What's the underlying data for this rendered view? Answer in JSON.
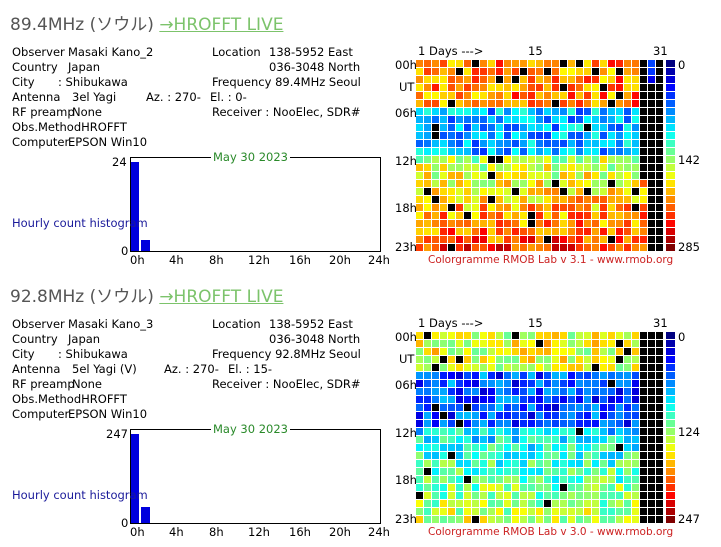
{
  "panels": [
    {
      "title_freq": "89.4MHz (ソウル)",
      "title_link": "→HROFFT LIVE",
      "info": {
        "observer_label": "Observer",
        "observer": "Masaki Kano_2",
        "country_label": "Country",
        "country": "Japan",
        "city_label": "City",
        "city": ":  Shibukawa",
        "antenna_label": "Antenna",
        "antenna": "3el Yagi",
        "az": "Az. : 270-",
        "el": "El. : 0-",
        "rf_label": "RF preamp",
        "rf": "None",
        "obs_method": "Obs.MethodHROFFT",
        "computer_label": "Computer",
        "computer": "EPSON Win10",
        "location_label": "Location",
        "location_e": "138-5952 East",
        "location_n": "036-3048 North",
        "frequency": "Frequency 89.4MHz Seoul",
        "receiver": "Receiver : NooElec, SDR#"
      },
      "histogram": {
        "date": "May 30 2023",
        "y_max_label": "24",
        "y_min_label": "0",
        "label": "Hourly count histogram",
        "x_labels": [
          "0h",
          "4h",
          "8h",
          "12h",
          "16h",
          "20h",
          "24h"
        ],
        "ymax": 24,
        "counts": [
          24,
          3,
          0,
          0,
          0,
          0,
          0,
          0,
          0,
          0,
          0,
          0,
          0,
          0,
          0,
          0,
          0,
          0,
          0,
          0,
          0,
          0,
          0,
          0
        ]
      },
      "colorgramme": {
        "days_label": "1   Days --->",
        "day_mid": "15",
        "day_end": "31",
        "hours": [
          "00h",
          "UT",
          "06h",
          "12h",
          "18h",
          "23h"
        ],
        "scale": [
          "0",
          "142",
          "285"
        ],
        "credit": "Colorgramme RMOB Lab v 3.1 - www.rmob.org",
        "seed": 7
      }
    },
    {
      "title_freq": "92.8MHz (ソウル)",
      "title_link": "→HROFFT LIVE",
      "info": {
        "observer_label": "Observer",
        "observer": "Masaki Kano_3",
        "country_label": "Country",
        "country": "Japan",
        "city_label": "City",
        "city": ":  Shibukawa",
        "antenna_label": "Antenna",
        "antenna": "5el Yagi (V)",
        "az": "Az. : 270-",
        "el": "El. : 15-",
        "rf_label": "RF preamp",
        "rf": "None",
        "obs_method": "Obs.MethodHROFFT",
        "computer_label": "Computer",
        "computer": "EPSON Win10",
        "location_label": "Location",
        "location_e": "138-5952 East",
        "location_n": "036-3048 North",
        "frequency": "Frequency 92.8MHz Seoul",
        "receiver": "Receiver : NooElec, SDR#"
      },
      "histogram": {
        "date": "May 30 2023",
        "y_max_label": "247",
        "y_min_label": "0",
        "label": "Hourly count histogram",
        "x_labels": [
          "0h",
          "4h",
          "8h",
          "12h",
          "16h",
          "20h",
          "24h"
        ],
        "ymax": 247,
        "counts": [
          247,
          45,
          0,
          0,
          0,
          0,
          0,
          0,
          0,
          0,
          0,
          0,
          0,
          0,
          0,
          0,
          0,
          0,
          0,
          0,
          0,
          0,
          0,
          0
        ]
      },
      "colorgramme": {
        "days_label": "1   Days --->",
        "day_mid": "15",
        "day_end": "31",
        "hours": [
          "00h",
          "UT",
          "06h",
          "12h",
          "18h",
          "23h"
        ],
        "scale": [
          "0",
          "124",
          "247"
        ],
        "credit": "Colorgramme RMOB Lab v 3.0 - www.rmob.org",
        "seed": 13
      }
    }
  ]
}
